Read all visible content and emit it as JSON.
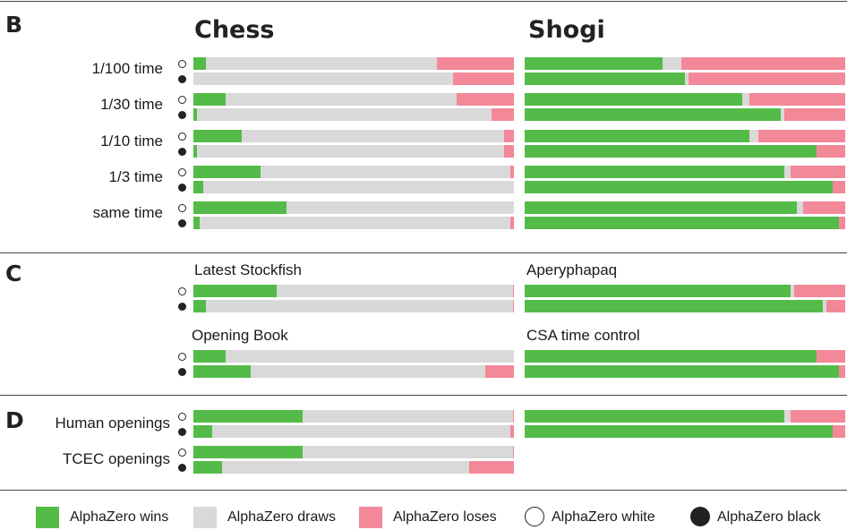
{
  "colors": {
    "win": "#55bb48",
    "draw": "#d9d9d9",
    "lose": "#f38899"
  },
  "panels": {
    "b": "B",
    "c": "C",
    "d": "D"
  },
  "games": {
    "chess": "Chess",
    "shogi": "Shogi"
  },
  "legend": {
    "wins": "AlphaZero wins",
    "draws": "AlphaZero draws",
    "loses": "AlphaZero loses",
    "white": "AlphaZero white",
    "black": "AlphaZero black"
  },
  "chart_data": [
    {
      "type": "bar",
      "panel": "B",
      "stacked": "horizontal",
      "value_units": "percent of games",
      "segments": [
        "AlphaZero wins",
        "AlphaZero draws",
        "AlphaZero loses"
      ],
      "rows": [
        {
          "label": "1/100 time",
          "chess": {
            "white": [
              4,
              72,
              24
            ],
            "black": [
              0,
              81,
              19
            ]
          },
          "shogi": {
            "white": [
              43,
              6,
              51
            ],
            "black": [
              50,
              1,
              49
            ]
          }
        },
        {
          "label": "1/30 time",
          "chess": {
            "white": [
              10,
              72,
              18
            ],
            "black": [
              1,
              92,
              7
            ]
          },
          "shogi": {
            "white": [
              68,
              2,
              30
            ],
            "black": [
              80,
              1,
              19
            ]
          }
        },
        {
          "label": "1/10 time",
          "chess": {
            "white": [
              15,
              82,
              3
            ],
            "black": [
              1,
              96,
              3
            ]
          },
          "shogi": {
            "white": [
              70,
              3,
              27
            ],
            "black": [
              91,
              0,
              9
            ]
          }
        },
        {
          "label": "1/3 time",
          "chess": {
            "white": [
              21,
              78,
              1
            ],
            "black": [
              3,
              97,
              0
            ]
          },
          "shogi": {
            "white": [
              81,
              2,
              17
            ],
            "black": [
              96,
              0,
              4
            ]
          }
        },
        {
          "label": "same time",
          "chess": {
            "white": [
              29,
              71,
              0
            ],
            "black": [
              2,
              97,
              1
            ]
          },
          "shogi": {
            "white": [
              85,
              2,
              13
            ],
            "black": [
              98,
              0,
              2
            ]
          }
        }
      ]
    },
    {
      "type": "bar",
      "panel": "C",
      "stacked": "horizontal",
      "value_units": "percent of games",
      "segments": [
        "AlphaZero wins",
        "AlphaZero draws",
        "AlphaZero loses"
      ],
      "groups": [
        {
          "game": "chess",
          "title": "Latest Stockfish",
          "white": [
            26,
            74,
            0.3
          ],
          "black": [
            4,
            96,
            0.3
          ]
        },
        {
          "game": "shogi",
          "title": "Aperyphapaq",
          "white": [
            83,
            1,
            16
          ],
          "black": [
            93,
            1,
            6
          ]
        },
        {
          "game": "chess",
          "title": "Opening Book",
          "white": [
            10,
            90,
            0
          ],
          "black": [
            18,
            73,
            9
          ]
        },
        {
          "game": "shogi",
          "title": "CSA time control",
          "white": [
            91,
            0,
            9
          ],
          "black": [
            98,
            0,
            2
          ]
        }
      ]
    },
    {
      "type": "bar",
      "panel": "D",
      "stacked": "horizontal",
      "value_units": "percent of games",
      "segments": [
        "AlphaZero wins",
        "AlphaZero draws",
        "AlphaZero loses"
      ],
      "rows": [
        {
          "label": "Human openings",
          "chess": {
            "white": [
              34,
              65.6,
              0.4
            ],
            "black": [
              6,
              93,
              1
            ]
          },
          "shogi": {
            "white": [
              81,
              2,
              17
            ],
            "black": [
              96,
              0,
              4
            ]
          }
        },
        {
          "label": "TCEC openings",
          "chess": {
            "white": [
              34,
              65.6,
              0.4
            ],
            "black": [
              9,
              77,
              14
            ]
          }
        }
      ]
    }
  ]
}
